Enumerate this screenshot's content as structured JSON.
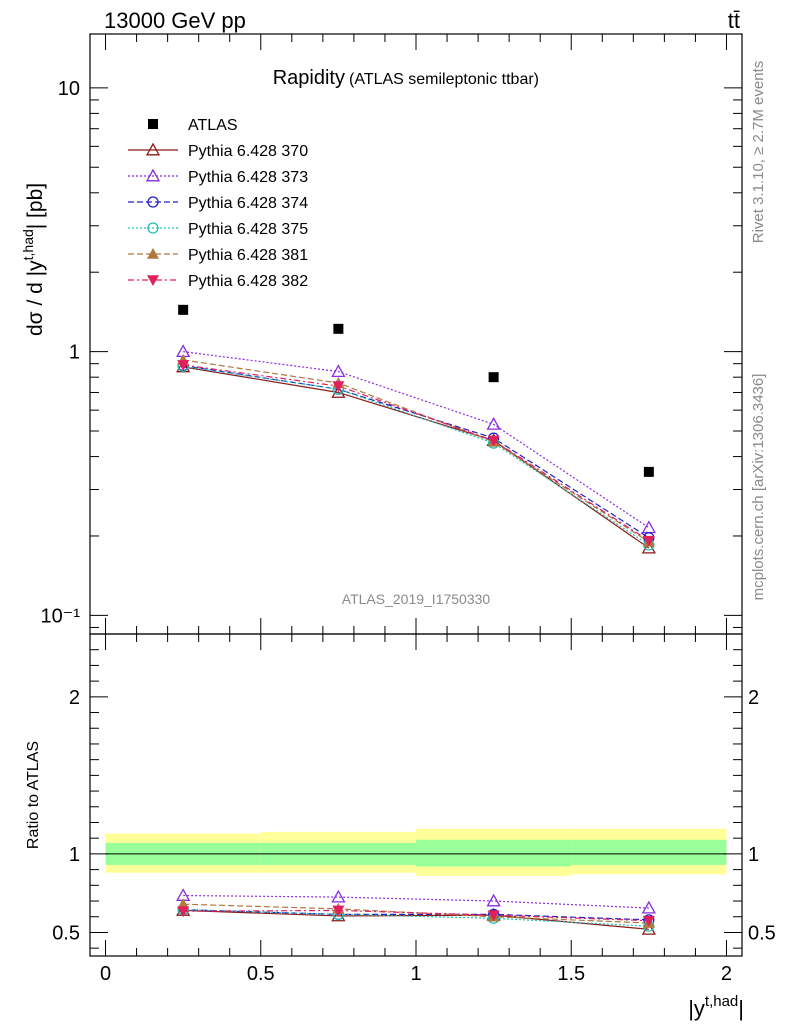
{
  "header": {
    "left": "13000 GeV pp",
    "right": "tt̄"
  },
  "side_labels": {
    "rivet": "Rivet 3.1.10, ≥ 2.7M events",
    "mcplots": "mcplots.cern.ch [arXiv:1306.3436]"
  },
  "chart_data": [
    {
      "type": "line",
      "panel": "main",
      "title": "Rapidity",
      "subtitle": "(ATLAS semileptonic ttbar)",
      "ylabel": "dσ / d |y^{t,had}| [pb]",
      "yscale": "log",
      "ylim": [
        0.085,
        16
      ],
      "xlim": [
        -0.05,
        2.05
      ],
      "watermark": "ATLAS_2019_I1750330",
      "y_tick_labels": [
        "10",
        "1",
        "10⁻¹"
      ],
      "x": [
        0.25,
        0.75,
        1.25,
        1.75
      ],
      "series": [
        {
          "name": "ATLAS",
          "values": [
            1.44,
            1.22,
            0.8,
            0.35
          ],
          "color": "#000000",
          "marker": "square",
          "line": "none"
        },
        {
          "name": "Pythia 6.428 370",
          "values": [
            0.875,
            0.7,
            0.46,
            0.18
          ],
          "color": "#8b1a1a",
          "marker": "triangle-open",
          "line": "solid"
        },
        {
          "name": "Pythia 6.428 373",
          "values": [
            1.0,
            0.84,
            0.53,
            0.215
          ],
          "color": "#8a2be2",
          "marker": "triangle-open",
          "line": "dotted"
        },
        {
          "name": "Pythia 6.428 374",
          "values": [
            0.885,
            0.72,
            0.47,
            0.197
          ],
          "color": "#2020d0",
          "marker": "circle-open",
          "line": "dashed"
        },
        {
          "name": "Pythia 6.428 375",
          "values": [
            0.88,
            0.72,
            0.45,
            0.185
          ],
          "color": "#20c0b0",
          "marker": "circle-open",
          "line": "dotted"
        },
        {
          "name": "Pythia 6.428 381",
          "values": [
            0.93,
            0.76,
            0.455,
            0.19
          ],
          "color": "#b07840",
          "marker": "triangle-filled",
          "line": "dashed"
        },
        {
          "name": "Pythia 6.428 382",
          "values": [
            0.89,
            0.74,
            0.46,
            0.192
          ],
          "color": "#e0205a",
          "marker": "triangle-down-filled",
          "line": "dashdot"
        }
      ]
    },
    {
      "type": "line",
      "panel": "ratio",
      "ylabel": "Ratio to ATLAS",
      "xlabel": "|y^{t,had}|",
      "ylim": [
        0.35,
        2.4
      ],
      "xlim": [
        -0.05,
        2.05
      ],
      "x_tick_labels": [
        "0",
        "0.5",
        "1",
        "1.5",
        "2"
      ],
      "y_tick_labels": [
        "0.5",
        "1",
        "2"
      ],
      "bands": [
        {
          "x0": 0.0,
          "x1": 0.5,
          "stat": [
            0.93,
            1.07
          ],
          "total": [
            0.88,
            1.13
          ]
        },
        {
          "x0": 0.5,
          "x1": 1.0,
          "stat": [
            0.93,
            1.07
          ],
          "total": [
            0.88,
            1.14
          ]
        },
        {
          "x0": 1.0,
          "x1": 1.5,
          "stat": [
            0.92,
            1.09
          ],
          "total": [
            0.86,
            1.16
          ]
        },
        {
          "x0": 1.5,
          "x1": 2.0,
          "stat": [
            0.93,
            1.09
          ],
          "total": [
            0.87,
            1.16
          ]
        }
      ],
      "band_colors": {
        "total": "#ffff99",
        "stat": "#99ff99"
      },
      "x": [
        0.25,
        0.75,
        1.25,
        1.75
      ],
      "series": [
        {
          "name": "Pythia 6.428 370",
          "values": [
            0.64,
            0.605,
            0.61,
            0.52
          ]
        },
        {
          "name": "Pythia 6.428 373",
          "values": [
            0.735,
            0.725,
            0.7,
            0.655
          ]
        },
        {
          "name": "Pythia 6.428 374",
          "values": [
            0.645,
            0.615,
            0.615,
            0.58
          ]
        },
        {
          "name": "Pythia 6.428 375",
          "values": [
            0.645,
            0.615,
            0.59,
            0.54
          ]
        },
        {
          "name": "Pythia 6.428 381",
          "values": [
            0.68,
            0.65,
            0.6,
            0.56
          ]
        },
        {
          "name": "Pythia 6.428 382",
          "values": [
            0.635,
            0.64,
            0.61,
            0.575
          ]
        }
      ]
    }
  ]
}
